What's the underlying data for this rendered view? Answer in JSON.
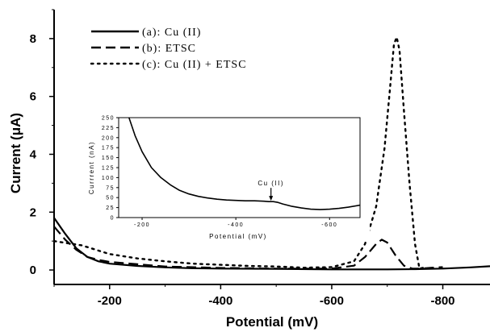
{
  "chart_data": [
    {
      "type": "line",
      "xlabel": "Potential (mV)",
      "ylabel": "Current (μA)",
      "xlim": [
        -100,
        -885
      ],
      "ylim": [
        -0.5,
        9
      ],
      "x_ticks": [
        -200,
        -400,
        -600,
        -800
      ],
      "x_tick_labels": [
        "-200",
        "-400",
        "-600",
        "-800"
      ],
      "y_ticks": [
        0,
        2,
        4,
        6,
        8
      ],
      "y_tick_labels": [
        "0",
        "2",
        "4",
        "6",
        "8"
      ],
      "legend_position": "top-left",
      "series": [
        {
          "name": "(a): Cu (II)",
          "style": "solid",
          "x": [
            -100,
            -120,
            -140,
            -160,
            -180,
            -200,
            -250,
            -300,
            -350,
            -400,
            -500,
            -600,
            -700,
            -750,
            -800,
            -850,
            -885
          ],
          "y": [
            1.8,
            1.25,
            0.75,
            0.45,
            0.3,
            0.22,
            0.14,
            0.09,
            0.06,
            0.05,
            0.04,
            0.02,
            0.02,
            0.03,
            0.05,
            0.09,
            0.13
          ]
        },
        {
          "name": "(b): ETSC",
          "style": "dashed",
          "x": [
            -100,
            -120,
            -140,
            -160,
            -180,
            -200,
            -250,
            -300,
            -400,
            -500,
            -600,
            -640,
            -660,
            -680,
            -690,
            -700,
            -715,
            -730,
            -745,
            -760,
            -780,
            -800
          ],
          "y": [
            1.5,
            1.05,
            0.7,
            0.45,
            0.35,
            0.28,
            0.2,
            0.12,
            0.07,
            0.05,
            0.05,
            0.15,
            0.45,
            0.9,
            1.05,
            0.95,
            0.5,
            0.15,
            0.05,
            0.05,
            0.08,
            0.1
          ]
        },
        {
          "name": "(c): Cu (II) + ETSC",
          "style": "dotted",
          "x": [
            -100,
            -150,
            -200,
            -250,
            -300,
            -350,
            -400,
            -450,
            -500,
            -550,
            -600,
            -640,
            -660,
            -680,
            -695,
            -705,
            -712,
            -717,
            -722,
            -730,
            -740,
            -750,
            -758,
            -770
          ],
          "y": [
            1.0,
            0.85,
            0.55,
            0.4,
            0.3,
            0.22,
            0.18,
            0.14,
            0.12,
            0.08,
            0.1,
            0.3,
            0.9,
            2.2,
            4.2,
            6.3,
            7.8,
            8.05,
            7.6,
            5.5,
            3.0,
            0.9,
            0.05,
            0.1
          ]
        }
      ]
    },
    {
      "type": "line",
      "xlabel": "Potential (mV)",
      "ylabel": "Currrent (nA)",
      "xlim": [
        -150,
        -665
      ],
      "ylim": [
        0,
        250
      ],
      "x_ticks": [
        -200,
        -400,
        -600
      ],
      "x_tick_labels": [
        "-200",
        "-400",
        "-600"
      ],
      "y_ticks": [
        0,
        25,
        50,
        75,
        100,
        125,
        150,
        175,
        200,
        225,
        250
      ],
      "y_tick_labels": [
        "0",
        "25",
        "50",
        "75",
        "100",
        "125",
        "150",
        "175",
        "200",
        "225",
        "250"
      ],
      "annotation": "Cu (II)",
      "annotation_x": -475,
      "annotation_y": 40,
      "series": [
        {
          "style": "solid",
          "x": [
            -172,
            -185,
            -200,
            -220,
            -240,
            -260,
            -280,
            -300,
            -320,
            -340,
            -360,
            -380,
            -400,
            -420,
            -440,
            -460,
            -470,
            -480,
            -490,
            -500,
            -520,
            -540,
            -560,
            -580,
            -600,
            -620,
            -640,
            -665
          ],
          "y": [
            250,
            205,
            165,
            125,
            100,
            82,
            68,
            59,
            53,
            49,
            46,
            44,
            43,
            42,
            42,
            41,
            40,
            40,
            38,
            34,
            28,
            24,
            21,
            20,
            21,
            23,
            26,
            31
          ]
        }
      ]
    }
  ]
}
